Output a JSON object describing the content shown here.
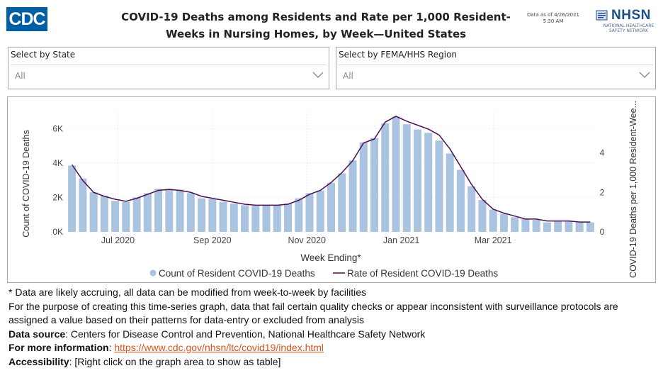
{
  "header": {
    "logo_text": "CDC",
    "title_line1": "COVID-19 Deaths among Residents and Rate per 1,000 Resident-",
    "title_line2": "Weeks in Nursing Homes, by Week—United States",
    "asof_line1": "Data as of 4/26/2021",
    "asof_line2": "5:30 AM",
    "nhsn_logo": "NHSN",
    "nhsn_sub_line1": "NATIONAL HEALTHCARE",
    "nhsn_sub_line2": "SAFETY NETWORK"
  },
  "filters": {
    "state": {
      "label": "Select by State",
      "value": "All"
    },
    "region": {
      "label": "Select by FEMA/HHS Region",
      "value": "All"
    }
  },
  "chart_data": {
    "type": "bar",
    "title": "",
    "xlabel": "Week Ending*",
    "ylabel": "Count of COVID-19 Deaths",
    "ylabel_right": "COVID-19 Deaths per 1,000 Resident-Wee...",
    "ylim": [
      0,
      7000
    ],
    "ylim_right": [
      0,
      6.1
    ],
    "y_ticks": [
      0,
      2000,
      4000,
      6000
    ],
    "y_tick_labels": [
      "0K",
      "2K",
      "4K",
      "6K"
    ],
    "y_ticks_right": [
      0,
      2,
      4
    ],
    "y_tick_labels_right": [
      "0",
      "2",
      "4"
    ],
    "x_tick_labels": [
      {
        "label": "Jul 2020",
        "week": 4.25
      },
      {
        "label": "Sep 2020",
        "week": 13
      },
      {
        "label": "Nov 2020",
        "week": 21.75
      },
      {
        "label": "Jan 2021",
        "week": 30.5
      },
      {
        "label": "Mar 2021",
        "week": 39
      }
    ],
    "grid": true,
    "legend": "bottom",
    "series": [
      {
        "name": "Count of Resident COVID-19 Deaths",
        "type": "bar",
        "color": "#a9c3e0",
        "values": [
          3850,
          3100,
          2300,
          2100,
          1800,
          1750,
          2000,
          2250,
          2500,
          2500,
          2450,
          2250,
          1950,
          1900,
          1750,
          1650,
          1550,
          1500,
          1550,
          1550,
          1650,
          1950,
          2250,
          2400,
          2850,
          3400,
          4150,
          5200,
          5450,
          6300,
          6700,
          6250,
          5950,
          5750,
          5300,
          4550,
          3600,
          2650,
          1850,
          1300,
          1050,
          850,
          750,
          700,
          550,
          650,
          600,
          600,
          550
        ]
      },
      {
        "name": "Rate of Resident COVID-19 Deaths",
        "type": "line",
        "color": "#4b0f4e",
        "values": [
          3.4,
          2.6,
          2.0,
          1.8,
          1.65,
          1.55,
          1.7,
          1.9,
          2.1,
          2.15,
          2.1,
          2.0,
          1.8,
          1.7,
          1.6,
          1.5,
          1.4,
          1.35,
          1.35,
          1.35,
          1.4,
          1.6,
          1.9,
          2.1,
          2.5,
          3.0,
          3.6,
          4.5,
          4.7,
          5.55,
          5.85,
          5.6,
          5.4,
          5.2,
          4.9,
          4.2,
          3.3,
          2.4,
          1.65,
          1.15,
          0.95,
          0.8,
          0.65,
          0.65,
          0.55,
          0.55,
          0.55,
          0.5,
          0.5
        ]
      }
    ]
  },
  "notes": {
    "note1": "* Data are likely accruing, all data can be modified from week-to-week by facilities",
    "note2": "For the purpose of creating this time-series graph, data that fail certain quality checks or appear inconsistent with surveillance protocols are assigned a value based on their patterns for data-entry or excluded from analysis",
    "source_label": "Data source",
    "source_text": ": Centers for Disease Control and Prevention, National Healthcare Safety Network",
    "info_label": "For more information",
    "info_sep": ": ",
    "info_link": "https://www.cdc.gov/nhsn/ltc/covid19/index.html",
    "access_label": "Accessibility",
    "access_text": ": [Right click on the graph area to show as table]"
  },
  "colors": {
    "cdc_blue": "#005ea2",
    "nhsn_blue": "#1c4f8a",
    "bar": "#a9c3e0",
    "line": "#4b0f4e",
    "link": "#d9541c"
  }
}
